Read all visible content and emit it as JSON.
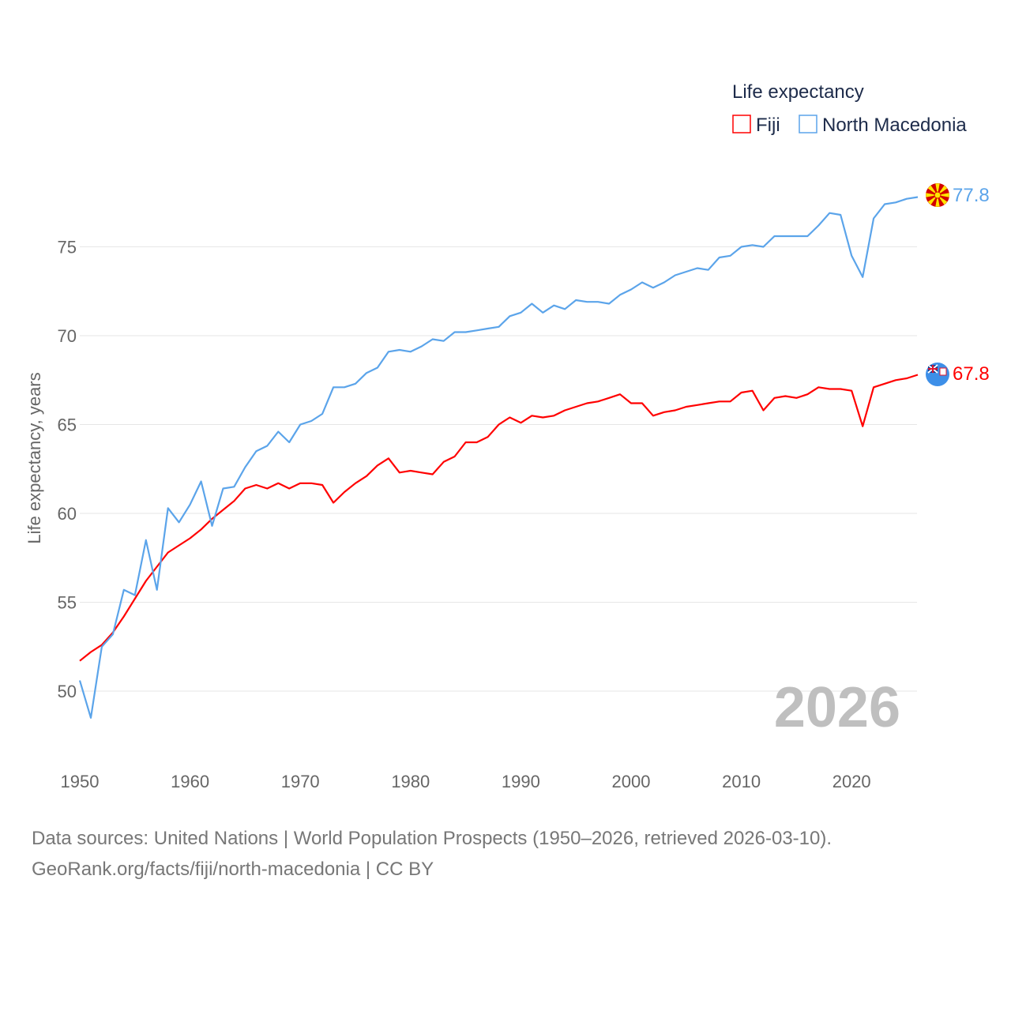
{
  "chart_data": {
    "type": "line",
    "title": "",
    "xlabel": "",
    "ylabel": "Life expectancy, years",
    "xlim": [
      1950,
      2026
    ],
    "ylim": [
      47.5,
      79
    ],
    "grid": true,
    "x_ticks": [
      "1950",
      "1960",
      "1970",
      "1980",
      "1990",
      "2000",
      "2010",
      "2020"
    ],
    "y_ticks": [
      "50",
      "55",
      "60",
      "65",
      "70",
      "75"
    ],
    "legend": {
      "title": "Life expectancy",
      "position": "top-right"
    },
    "year_label": "2026",
    "x": [
      1950,
      1951,
      1952,
      1953,
      1954,
      1955,
      1956,
      1957,
      1958,
      1959,
      1960,
      1961,
      1962,
      1963,
      1964,
      1965,
      1966,
      1967,
      1968,
      1969,
      1970,
      1971,
      1972,
      1973,
      1974,
      1975,
      1976,
      1977,
      1978,
      1979,
      1980,
      1981,
      1982,
      1983,
      1984,
      1985,
      1986,
      1987,
      1988,
      1989,
      1990,
      1991,
      1992,
      1993,
      1994,
      1995,
      1996,
      1997,
      1998,
      1999,
      2000,
      2001,
      2002,
      2003,
      2004,
      2005,
      2006,
      2007,
      2008,
      2009,
      2010,
      2011,
      2012,
      2013,
      2014,
      2015,
      2016,
      2017,
      2018,
      2019,
      2020,
      2021,
      2022,
      2023,
      2024,
      2025,
      2026
    ],
    "series": [
      {
        "name": "Fiji",
        "color": "#ff0000",
        "end_label": "67.8",
        "values": [
          51.7,
          52.2,
          52.6,
          53.3,
          54.2,
          55.2,
          56.2,
          57.0,
          57.8,
          58.2,
          58.6,
          59.1,
          59.7,
          60.2,
          60.7,
          61.4,
          61.6,
          61.4,
          61.7,
          61.4,
          61.7,
          61.7,
          61.6,
          60.6,
          61.2,
          61.7,
          62.1,
          62.7,
          63.1,
          62.3,
          62.4,
          62.3,
          62.2,
          62.9,
          63.2,
          64.0,
          64.0,
          64.3,
          65.0,
          65.4,
          65.1,
          65.5,
          65.4,
          65.5,
          65.8,
          66.0,
          66.2,
          66.3,
          66.5,
          66.7,
          66.2,
          66.2,
          65.5,
          65.7,
          65.8,
          66.0,
          66.1,
          66.2,
          66.3,
          66.3,
          66.8,
          66.9,
          65.8,
          66.5,
          66.6,
          66.5,
          66.7,
          67.1,
          67.0,
          67.0,
          66.9,
          64.9,
          67.1,
          67.3,
          67.5,
          67.6,
          67.8
        ]
      },
      {
        "name": "North Macedonia",
        "color": "#5ba4ea",
        "end_label": "77.8",
        "values": [
          50.6,
          48.5,
          52.5,
          53.2,
          55.7,
          55.4,
          58.5,
          55.7,
          60.3,
          59.5,
          60.5,
          61.8,
          59.3,
          61.4,
          61.5,
          62.6,
          63.5,
          63.8,
          64.6,
          64.0,
          65.0,
          65.2,
          65.6,
          67.1,
          67.1,
          67.3,
          67.9,
          68.2,
          69.1,
          69.2,
          69.1,
          69.4,
          69.8,
          69.7,
          70.2,
          70.2,
          70.3,
          70.4,
          70.5,
          71.1,
          71.3,
          71.8,
          71.3,
          71.7,
          71.5,
          72.0,
          71.9,
          71.9,
          71.8,
          72.3,
          72.6,
          73.0,
          72.7,
          73.0,
          73.4,
          73.6,
          73.8,
          73.7,
          74.4,
          74.5,
          75.0,
          75.1,
          75.0,
          75.6,
          75.6,
          75.6,
          75.6,
          76.2,
          76.9,
          76.8,
          74.5,
          73.3,
          76.6,
          77.4,
          77.5,
          77.7,
          77.8
        ]
      }
    ]
  },
  "footer": {
    "source_line": "Data sources: United Nations | World Population Prospects (1950–2026, retrieved 2026-03-10).",
    "credit_line": "GeoRank.org/facts/fiji/north-macedonia | CC BY"
  }
}
